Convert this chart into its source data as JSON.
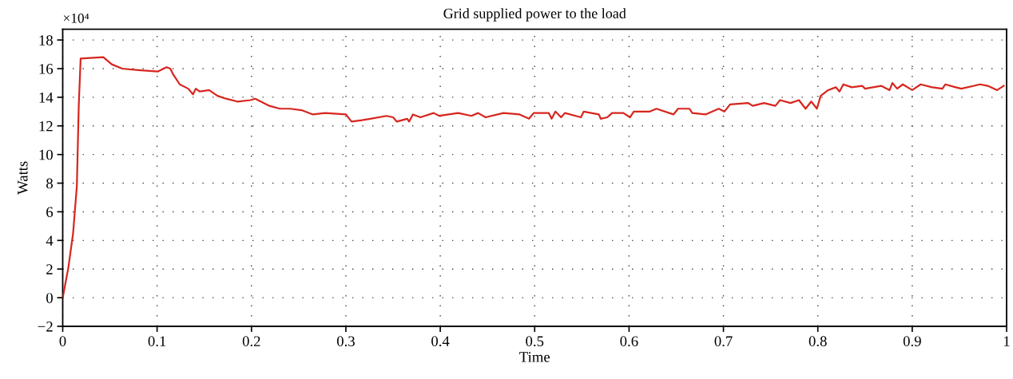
{
  "chart_data": {
    "type": "line",
    "title": "Grid supplied power to the load",
    "xlabel": "Time",
    "ylabel": "Watts",
    "annotations": [
      "×10⁴"
    ],
    "x": [
      0,
      0.006,
      0.011,
      0.015,
      0.017,
      0.019,
      0.043,
      0.052,
      0.063,
      0.08,
      0.101,
      0.11,
      0.114,
      0.117,
      0.124,
      0.133,
      0.138,
      0.141,
      0.145,
      0.155,
      0.164,
      0.173,
      0.185,
      0.199,
      0.204,
      0.219,
      0.23,
      0.241,
      0.253,
      0.265,
      0.278,
      0.3,
      0.306,
      0.317,
      0.326,
      0.343,
      0.35,
      0.354,
      0.365,
      0.367,
      0.371,
      0.379,
      0.393,
      0.399,
      0.419,
      0.433,
      0.44,
      0.448,
      0.467,
      0.484,
      0.494,
      0.499,
      0.515,
      0.518,
      0.522,
      0.528,
      0.532,
      0.549,
      0.552,
      0.568,
      0.57,
      0.577,
      0.582,
      0.594,
      0.601,
      0.605,
      0.622,
      0.629,
      0.647,
      0.652,
      0.664,
      0.667,
      0.681,
      0.695,
      0.701,
      0.707,
      0.726,
      0.731,
      0.743,
      0.755,
      0.76,
      0.771,
      0.78,
      0.787,
      0.793,
      0.799,
      0.803,
      0.811,
      0.819,
      0.823,
      0.827,
      0.836,
      0.847,
      0.85,
      0.867,
      0.876,
      0.879,
      0.884,
      0.89,
      0.9,
      0.909,
      0.921,
      0.932,
      0.935,
      0.946,
      0.952,
      0.972,
      0.98,
      0.99,
      0.997
    ],
    "series": [
      {
        "color": "#d7261e",
        "values": [
          0,
          2.1,
          4.5,
          7.8,
          13.4,
          16.7,
          16.8,
          16.3,
          16.0,
          15.9,
          15.8,
          16.1,
          16.0,
          15.6,
          14.9,
          14.6,
          14.2,
          14.6,
          14.4,
          14.5,
          14.1,
          13.9,
          13.7,
          13.8,
          13.9,
          13.4,
          13.2,
          13.2,
          13.1,
          12.8,
          12.9,
          12.8,
          12.3,
          12.4,
          12.5,
          12.7,
          12.6,
          12.3,
          12.5,
          12.3,
          12.8,
          12.6,
          12.9,
          12.7,
          12.9,
          12.7,
          12.9,
          12.6,
          12.9,
          12.8,
          12.5,
          12.9,
          12.9,
          12.5,
          13.0,
          12.6,
          12.9,
          12.6,
          13.0,
          12.8,
          12.5,
          12.6,
          12.9,
          12.9,
          12.6,
          13.0,
          13.0,
          13.2,
          12.8,
          13.2,
          13.2,
          12.9,
          12.8,
          13.2,
          13.0,
          13.5,
          13.6,
          13.4,
          13.6,
          13.4,
          13.8,
          13.6,
          13.8,
          13.2,
          13.7,
          13.2,
          14.1,
          14.5,
          14.7,
          14.4,
          14.9,
          14.7,
          14.8,
          14.6,
          14.8,
          14.5,
          15.0,
          14.6,
          14.9,
          14.5,
          14.9,
          14.7,
          14.6,
          14.9,
          14.7,
          14.6,
          14.9,
          14.8,
          14.5,
          14.8
        ]
      }
    ],
    "xlim": [
      0,
      1
    ],
    "ylim": [
      -2,
      18.75
    ],
    "xticks": [
      0,
      0.1,
      0.2,
      0.3,
      0.4,
      0.5,
      0.6,
      0.7,
      0.8,
      0.9,
      1
    ],
    "yticks": [
      {
        "value": -2,
        "label": "−2"
      },
      0,
      2,
      4,
      6,
      8,
      10,
      12,
      14,
      16,
      18
    ],
    "grid": true,
    "line_style": "solid"
  }
}
